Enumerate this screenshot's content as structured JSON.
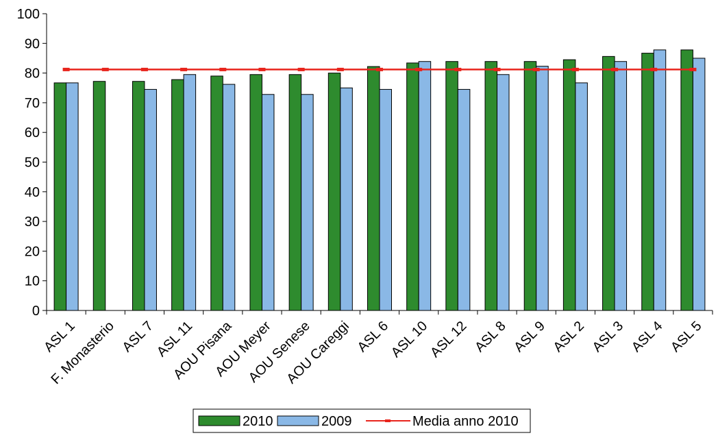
{
  "chart_data": {
    "type": "bar",
    "categories": [
      "ASL 1",
      "F. Monasterio",
      "ASL 7",
      "ASL 11",
      "AOU Pisana",
      "AOU Meyer",
      "AOU Senese",
      "AOU Careggi",
      "ASL 6",
      "ASL 10",
      "ASL 12",
      "ASL 8",
      "ASL 9",
      "ASL 2",
      "ASL 3",
      "ASL 4",
      "ASL 5"
    ],
    "series": [
      {
        "name": "2010",
        "type": "bar",
        "color": "#2e8b2e",
        "values": [
          76.7,
          77.2,
          77.2,
          77.8,
          79.0,
          79.5,
          79.5,
          80.0,
          82.2,
          83.4,
          83.9,
          83.9,
          83.9,
          84.5,
          85.6,
          86.7,
          87.8
        ]
      },
      {
        "name": "2009",
        "type": "bar",
        "color": "#8ab8e6",
        "values": [
          76.7,
          null,
          74.5,
          79.5,
          76.2,
          72.8,
          72.8,
          75.0,
          74.5,
          83.9,
          74.5,
          79.5,
          82.3,
          76.7,
          83.9,
          87.8,
          85.0
        ]
      },
      {
        "name": "Media anno 2010",
        "type": "line",
        "color": "#e8241c",
        "value": 81.2
      }
    ],
    "yticks": [
      "0",
      "10",
      "20",
      "30",
      "40",
      "50",
      "60",
      "70",
      "80",
      "90",
      "100"
    ],
    "ylim": [
      0,
      100
    ],
    "title": "",
    "xlabel": "",
    "ylabel": "",
    "grid": false,
    "legend_position": "bottom"
  }
}
